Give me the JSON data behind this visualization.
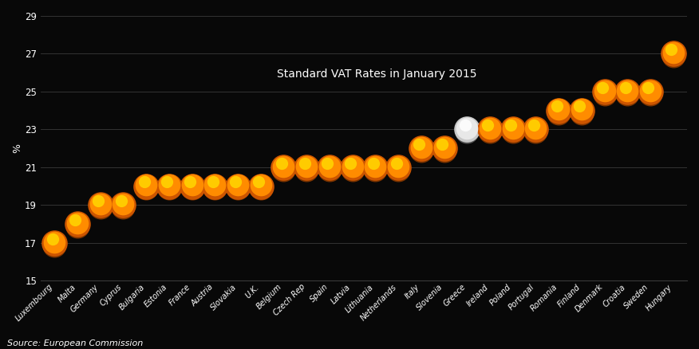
{
  "categories": [
    "Luxembourg",
    "Malta",
    "Germany",
    "Cyprus",
    "Bulgaria",
    "Estonia",
    "France",
    "Austria",
    "Slovakia",
    "U.K.",
    "Belgium",
    "Czech Rep",
    "Spain",
    "Latvia",
    "Lithuania",
    "Netherlands",
    "Italy",
    "Slovenia",
    "Greece",
    "Ireland",
    "Poland",
    "Portugal",
    "Romania",
    "Finland",
    "Denmark",
    "Croatia",
    "Sweden",
    "Hungary"
  ],
  "values": [
    17,
    18,
    19,
    19,
    20,
    20,
    20,
    20,
    20,
    20,
    21,
    21,
    21,
    21,
    21,
    21,
    22,
    22,
    23,
    23,
    23,
    23,
    24,
    24,
    25,
    25,
    25,
    27
  ],
  "highlight_index": 18,
  "bg_color": "#080808",
  "text_color": "#ffffff",
  "grid_color": "#3a3a3a",
  "title": "Standard VAT Rates in January 2015",
  "ylabel": "%",
  "source": "Source: European Commission",
  "ylim": [
    15,
    29
  ],
  "yticks": [
    15,
    17,
    19,
    21,
    23,
    25,
    27,
    29
  ],
  "title_fontsize": 10,
  "label_fontsize": 7,
  "source_fontsize": 8,
  "dot_size": 550
}
